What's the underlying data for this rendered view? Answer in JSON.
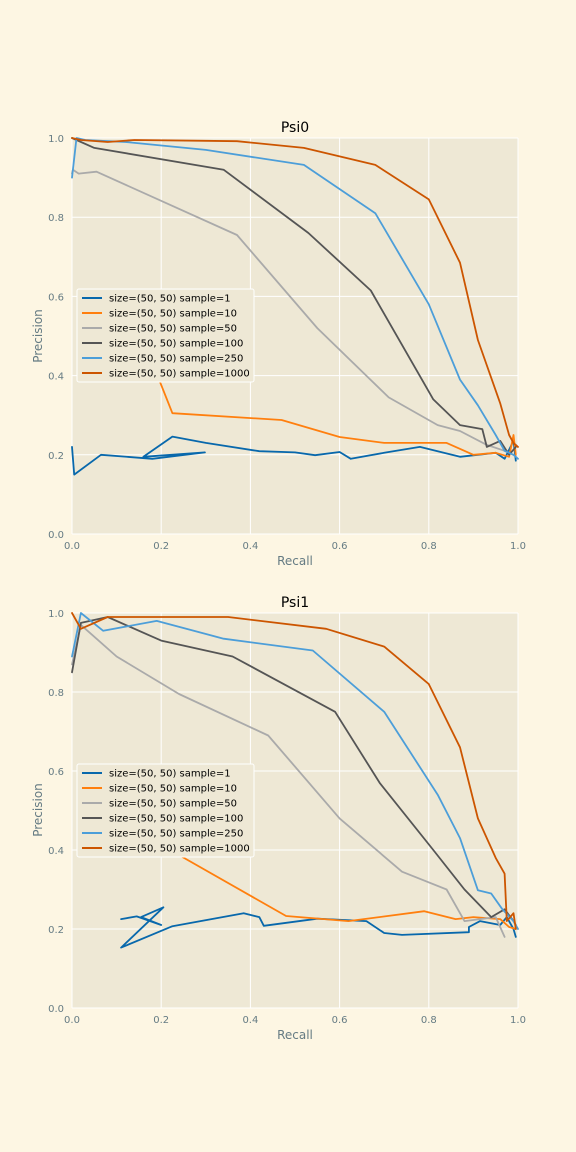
{
  "colors": {
    "page_bg": "#fdf6e3",
    "axes_bg": "#eee8d5",
    "grid": "#ffffff",
    "tick_text": "#657b83"
  },
  "chart_data": [
    {
      "type": "line",
      "title": "Psi0",
      "xlabel": "Recall",
      "ylabel": "Precision",
      "xlim": [
        0,
        1
      ],
      "ylim": [
        0,
        1
      ],
      "xticks": [
        "0.0",
        "0.2",
        "0.4",
        "0.6",
        "0.8",
        "1.0"
      ],
      "yticks": [
        "0.0",
        "0.2",
        "0.4",
        "0.6",
        "0.8",
        "1.0"
      ],
      "grid": true,
      "legend_position": "center-left",
      "series": [
        {
          "name": "size=(50, 50) sample=1",
          "color": "#0868ac",
          "x": [
            0.0,
            0.005,
            0.065,
            0.18,
            0.298,
            0.16,
            0.225,
            0.3,
            0.42,
            0.5,
            0.545,
            0.6,
            0.625,
            0.7,
            0.78,
            0.87,
            0.95,
            0.97,
            0.99,
            0.995
          ],
          "y": [
            0.22,
            0.15,
            0.2,
            0.19,
            0.206,
            0.195,
            0.246,
            0.23,
            0.209,
            0.206,
            0.199,
            0.207,
            0.19,
            0.205,
            0.22,
            0.195,
            0.205,
            0.19,
            0.235,
            0.185
          ]
        },
        {
          "name": "size=(50, 50) sample=10",
          "color": "#ff7f0e",
          "x": [
            0.19,
            0.225,
            0.47,
            0.6,
            0.7,
            0.84,
            0.9,
            0.95,
            0.98,
            0.99,
            0.995
          ],
          "y": [
            0.405,
            0.305,
            0.288,
            0.245,
            0.23,
            0.23,
            0.2,
            0.205,
            0.195,
            0.25,
            0.2
          ]
        },
        {
          "name": "size=(50, 50) sample=50",
          "color": "#aaaaaa",
          "x": [
            0.0,
            0.002,
            0.015,
            0.055,
            0.37,
            0.55,
            0.71,
            0.82,
            0.87,
            0.93,
            0.97,
            0.99
          ],
          "y": [
            0.91,
            0.92,
            0.91,
            0.915,
            0.755,
            0.52,
            0.345,
            0.275,
            0.26,
            0.225,
            0.21,
            0.2
          ]
        },
        {
          "name": "size=(50, 50) sample=100",
          "color": "#555555",
          "x": [
            0.0,
            0.01,
            0.05,
            0.34,
            0.53,
            0.67,
            0.81,
            0.87,
            0.92,
            0.93,
            0.96,
            0.98,
            0.995
          ],
          "y": [
            1.0,
            0.995,
            0.975,
            0.92,
            0.76,
            0.615,
            0.34,
            0.275,
            0.265,
            0.22,
            0.235,
            0.2,
            0.22
          ]
        },
        {
          "name": "size=(50, 50) sample=250",
          "color": "#4c9ed9",
          "x": [
            0.0,
            0.01,
            0.03,
            0.12,
            0.3,
            0.52,
            0.68,
            0.8,
            0.87,
            0.91,
            0.95,
            0.97,
            0.99,
            1.0
          ],
          "y": [
            0.9,
            1.0,
            0.995,
            0.99,
            0.97,
            0.932,
            0.81,
            0.58,
            0.39,
            0.325,
            0.25,
            0.21,
            0.2,
            0.19
          ]
        },
        {
          "name": "size=(50, 50) sample=1000",
          "color": "#cc5500",
          "x": [
            0.0,
            0.02,
            0.08,
            0.14,
            0.37,
            0.52,
            0.68,
            0.8,
            0.87,
            0.91,
            0.96,
            0.98,
            0.99,
            1.0
          ],
          "y": [
            1.0,
            0.995,
            0.99,
            0.995,
            0.992,
            0.975,
            0.932,
            0.845,
            0.685,
            0.49,
            0.33,
            0.25,
            0.23,
            0.22
          ]
        }
      ]
    },
    {
      "type": "line",
      "title": "Psi1",
      "xlabel": "Recall",
      "ylabel": "Precision",
      "xlim": [
        0,
        1
      ],
      "ylim": [
        0,
        1
      ],
      "xticks": [
        "0.0",
        "0.2",
        "0.4",
        "0.6",
        "0.8",
        "1.0"
      ],
      "yticks": [
        "0.0",
        "0.2",
        "0.4",
        "0.6",
        "0.8",
        "1.0"
      ],
      "grid": true,
      "legend_position": "center-left",
      "series": [
        {
          "name": "size=(50, 50) sample=1",
          "color": "#0868ac",
          "x": [
            0.11,
            0.145,
            0.2,
            0.155,
            0.205,
            0.11,
            0.225,
            0.385,
            0.42,
            0.43,
            0.55,
            0.66,
            0.7,
            0.74,
            0.89,
            0.89,
            0.915,
            0.96,
            0.975,
            0.99,
            0.995
          ],
          "y": [
            0.225,
            0.232,
            0.21,
            0.23,
            0.255,
            0.153,
            0.207,
            0.24,
            0.23,
            0.208,
            0.226,
            0.22,
            0.19,
            0.185,
            0.192,
            0.205,
            0.22,
            0.21,
            0.23,
            0.2,
            0.18
          ]
        },
        {
          "name": "size=(50, 50) sample=10",
          "color": "#ff7f0e",
          "x": [
            0.22,
            0.48,
            0.62,
            0.79,
            0.86,
            0.9,
            0.96,
            0.98,
            0.995
          ],
          "y": [
            0.4,
            0.233,
            0.22,
            0.245,
            0.225,
            0.23,
            0.225,
            0.205,
            0.2
          ]
        },
        {
          "name": "size=(50, 50) sample=50",
          "color": "#aaaaaa",
          "x": [
            0.0,
            0.02,
            0.1,
            0.24,
            0.44,
            0.6,
            0.74,
            0.84,
            0.88,
            0.95,
            0.97
          ],
          "y": [
            0.87,
            0.97,
            0.89,
            0.795,
            0.69,
            0.48,
            0.345,
            0.3,
            0.22,
            0.23,
            0.18
          ]
        },
        {
          "name": "size=(50, 50) sample=100",
          "color": "#555555",
          "x": [
            0.0,
            0.02,
            0.08,
            0.2,
            0.36,
            0.59,
            0.69,
            0.81,
            0.88,
            0.94,
            0.97,
            0.99,
            0.995
          ],
          "y": [
            0.85,
            0.975,
            0.99,
            0.93,
            0.89,
            0.75,
            0.57,
            0.4,
            0.3,
            0.23,
            0.25,
            0.22,
            0.21
          ]
        },
        {
          "name": "size=(50, 50) sample=250",
          "color": "#4c9ed9",
          "x": [
            0.0,
            0.02,
            0.07,
            0.19,
            0.34,
            0.54,
            0.7,
            0.82,
            0.87,
            0.91,
            0.94,
            0.965,
            0.99,
            1.0
          ],
          "y": [
            0.89,
            1.0,
            0.955,
            0.98,
            0.935,
            0.905,
            0.75,
            0.54,
            0.43,
            0.298,
            0.29,
            0.25,
            0.22,
            0.2
          ]
        },
        {
          "name": "size=(50, 50) sample=1000",
          "color": "#cc5500",
          "x": [
            0.0,
            0.02,
            0.08,
            0.35,
            0.57,
            0.7,
            0.8,
            0.87,
            0.91,
            0.95,
            0.97,
            0.975,
            0.99,
            0.995
          ],
          "y": [
            1.0,
            0.96,
            0.99,
            0.99,
            0.96,
            0.915,
            0.82,
            0.66,
            0.48,
            0.38,
            0.34,
            0.22,
            0.24,
            0.2
          ]
        }
      ]
    }
  ]
}
